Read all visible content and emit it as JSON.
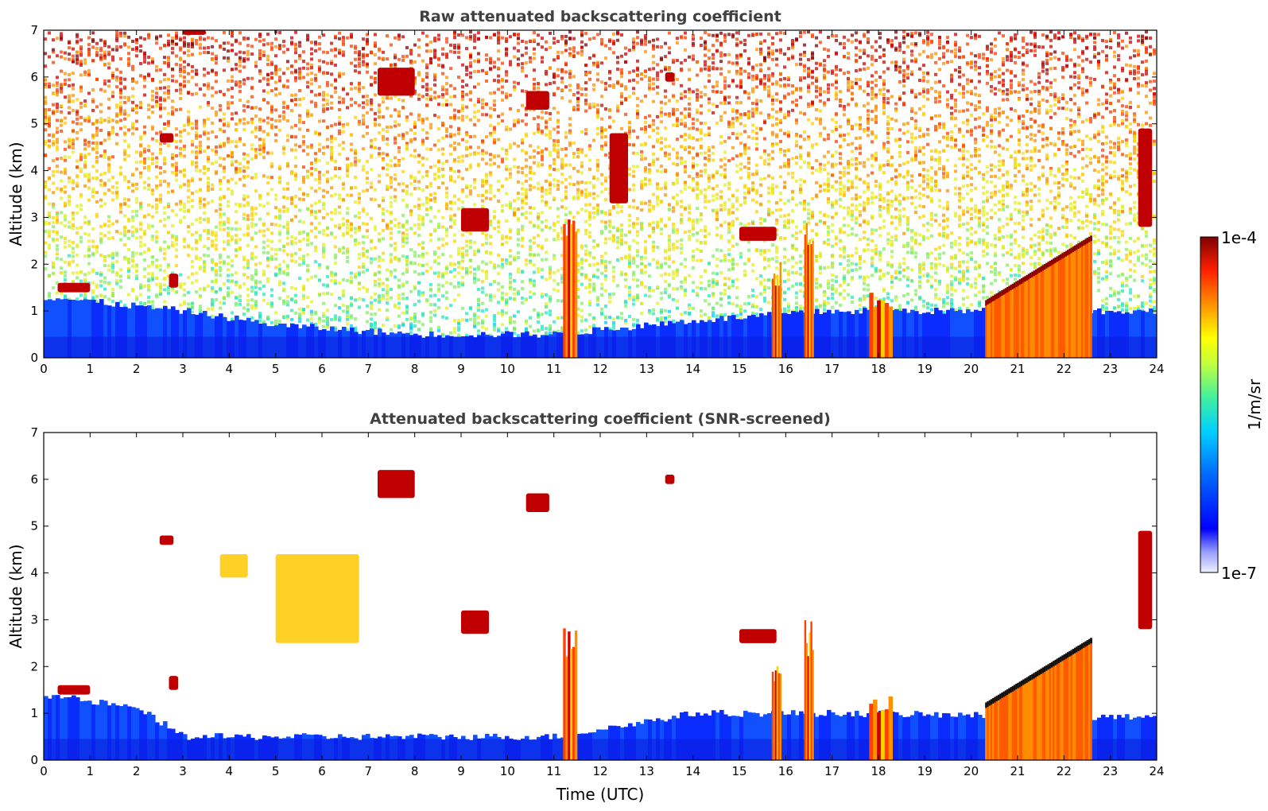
{
  "chart_data": [
    {
      "type": "heatmap",
      "title": "Raw attenuated backscattering coefficient",
      "xlabel": "",
      "ylabel": "Altitude (km)",
      "xlim": [
        0,
        24
      ],
      "ylim": [
        0,
        7
      ],
      "x_ticks": [
        "0",
        "1",
        "2",
        "3",
        "4",
        "5",
        "6",
        "7",
        "8",
        "9",
        "10",
        "11",
        "12",
        "13",
        "14",
        "15",
        "16",
        "17",
        "18",
        "19",
        "20",
        "21",
        "22",
        "23",
        "24"
      ],
      "y_ticks": [
        "0",
        "1",
        "2",
        "3",
        "4",
        "5",
        "6",
        "7"
      ],
      "background_noise": "high",
      "boundary_layer_top_km": [
        {
          "t": 0,
          "h": 1.3
        },
        {
          "t": 3,
          "h": 1.0
        },
        {
          "t": 5,
          "h": 0.7
        },
        {
          "t": 8,
          "h": 0.5
        },
        {
          "t": 11,
          "h": 0.5
        },
        {
          "t": 14,
          "h": 0.8
        },
        {
          "t": 17,
          "h": 1.0
        },
        {
          "t": 24,
          "h": 1.0
        }
      ],
      "features": [
        {
          "kind": "cloud",
          "t": [
            0.3,
            1.0
          ],
          "h": [
            1.4,
            1.6
          ]
        },
        {
          "kind": "cloud",
          "t": [
            2.5,
            2.8
          ],
          "h": [
            4.6,
            4.8
          ]
        },
        {
          "kind": "cloud",
          "t": [
            2.7,
            2.9
          ],
          "h": [
            1.5,
            1.8
          ]
        },
        {
          "kind": "cloud",
          "t": [
            3.0,
            3.5
          ],
          "h": [
            6.9,
            7.0
          ]
        },
        {
          "kind": "cloud",
          "t": [
            7.2,
            8.0
          ],
          "h": [
            5.6,
            6.2
          ]
        },
        {
          "kind": "cloud",
          "t": [
            10.4,
            10.9
          ],
          "h": [
            5.3,
            5.7
          ]
        },
        {
          "kind": "cloud",
          "t": [
            13.4,
            13.6
          ],
          "h": [
            5.9,
            6.1
          ]
        },
        {
          "kind": "cloud",
          "t": [
            9.0,
            9.6
          ],
          "h": [
            2.7,
            3.2
          ]
        },
        {
          "kind": "cloud",
          "t": [
            12.2,
            12.6
          ],
          "h": [
            3.3,
            4.8
          ]
        },
        {
          "kind": "cloud",
          "t": [
            15.0,
            15.8
          ],
          "h": [
            2.5,
            2.8
          ]
        },
        {
          "kind": "column",
          "t": [
            11.2,
            11.5
          ],
          "h": [
            0,
            3.1
          ]
        },
        {
          "kind": "column",
          "t": [
            15.7,
            15.9
          ],
          "h": [
            0,
            2.2
          ]
        },
        {
          "kind": "column",
          "t": [
            16.4,
            16.6
          ],
          "h": [
            0,
            3.0
          ]
        },
        {
          "kind": "column",
          "t": [
            17.8,
            18.3
          ],
          "h": [
            0,
            1.4
          ]
        },
        {
          "kind": "layer",
          "t": [
            20.3,
            22.6
          ],
          "h_start": 1.2,
          "h_end": 2.6
        },
        {
          "kind": "cloud",
          "t": [
            23.6,
            23.9
          ],
          "h": [
            2.8,
            4.9
          ]
        }
      ]
    },
    {
      "type": "heatmap",
      "title": "Attenuated backscattering coefficient (SNR-screened)",
      "xlabel": "Time (UTC)",
      "ylabel": "Altitude (km)",
      "xlim": [
        0,
        24
      ],
      "ylim": [
        0,
        7
      ],
      "x_ticks": [
        "0",
        "1",
        "2",
        "3",
        "4",
        "5",
        "6",
        "7",
        "8",
        "9",
        "10",
        "11",
        "12",
        "13",
        "14",
        "15",
        "16",
        "17",
        "18",
        "19",
        "20",
        "21",
        "22",
        "23",
        "24"
      ],
      "y_ticks": [
        "0",
        "1",
        "2",
        "3",
        "4",
        "5",
        "6",
        "7"
      ],
      "background_noise": "screened",
      "boundary_layer_top_km": [
        {
          "t": 0,
          "h": 1.4
        },
        {
          "t": 2,
          "h": 1.1
        },
        {
          "t": 3,
          "h": 0.5
        },
        {
          "t": 8,
          "h": 0.5
        },
        {
          "t": 11,
          "h": 0.5
        },
        {
          "t": 14,
          "h": 1.0
        },
        {
          "t": 17,
          "h": 1.0
        },
        {
          "t": 24,
          "h": 0.9
        }
      ],
      "features": [
        {
          "kind": "cloud",
          "t": [
            0.3,
            1.0
          ],
          "h": [
            1.4,
            1.6
          ]
        },
        {
          "kind": "cloud",
          "t": [
            2.5,
            2.8
          ],
          "h": [
            4.6,
            4.8
          ]
        },
        {
          "kind": "cloud",
          "t": [
            2.7,
            2.9
          ],
          "h": [
            1.5,
            1.8
          ]
        },
        {
          "kind": "cloud",
          "t": [
            7.2,
            8.0
          ],
          "h": [
            5.6,
            6.2
          ]
        },
        {
          "kind": "cloud",
          "t": [
            10.4,
            10.9
          ],
          "h": [
            5.3,
            5.7
          ]
        },
        {
          "kind": "cloud",
          "t": [
            13.4,
            13.6
          ],
          "h": [
            5.9,
            6.1
          ]
        },
        {
          "kind": "cloud",
          "t": [
            9.0,
            9.6
          ],
          "h": [
            2.7,
            3.2
          ]
        },
        {
          "kind": "cloud",
          "t": [
            3.8,
            4.4
          ],
          "h": [
            3.9,
            4.4
          ]
        },
        {
          "kind": "cloud",
          "t": [
            5.0,
            6.8
          ],
          "h": [
            2.5,
            4.4
          ]
        },
        {
          "kind": "cloud",
          "t": [
            15.0,
            15.8
          ],
          "h": [
            2.5,
            2.8
          ]
        },
        {
          "kind": "column",
          "t": [
            11.2,
            11.5
          ],
          "h": [
            0,
            3.1
          ]
        },
        {
          "kind": "column",
          "t": [
            15.7,
            15.9
          ],
          "h": [
            0,
            2.2
          ]
        },
        {
          "kind": "column",
          "t": [
            16.4,
            16.6
          ],
          "h": [
            0,
            3.0
          ]
        },
        {
          "kind": "column",
          "t": [
            17.8,
            18.3
          ],
          "h": [
            0,
            1.4
          ]
        },
        {
          "kind": "layer",
          "t": [
            20.3,
            22.6
          ],
          "h_start": 1.2,
          "h_end": 2.6
        },
        {
          "kind": "cloud",
          "t": [
            23.6,
            23.9
          ],
          "h": [
            2.8,
            4.9
          ]
        }
      ]
    }
  ],
  "colorbar": {
    "label": "1/m/sr",
    "max_label": "1e-4",
    "min_label": "1e-7",
    "scale": "log",
    "colormap": [
      "#f0f0fb",
      "#0000ff",
      "#00bfff",
      "#40e0a0",
      "#ffff00",
      "#ff8000",
      "#ff0000",
      "#800000"
    ]
  }
}
